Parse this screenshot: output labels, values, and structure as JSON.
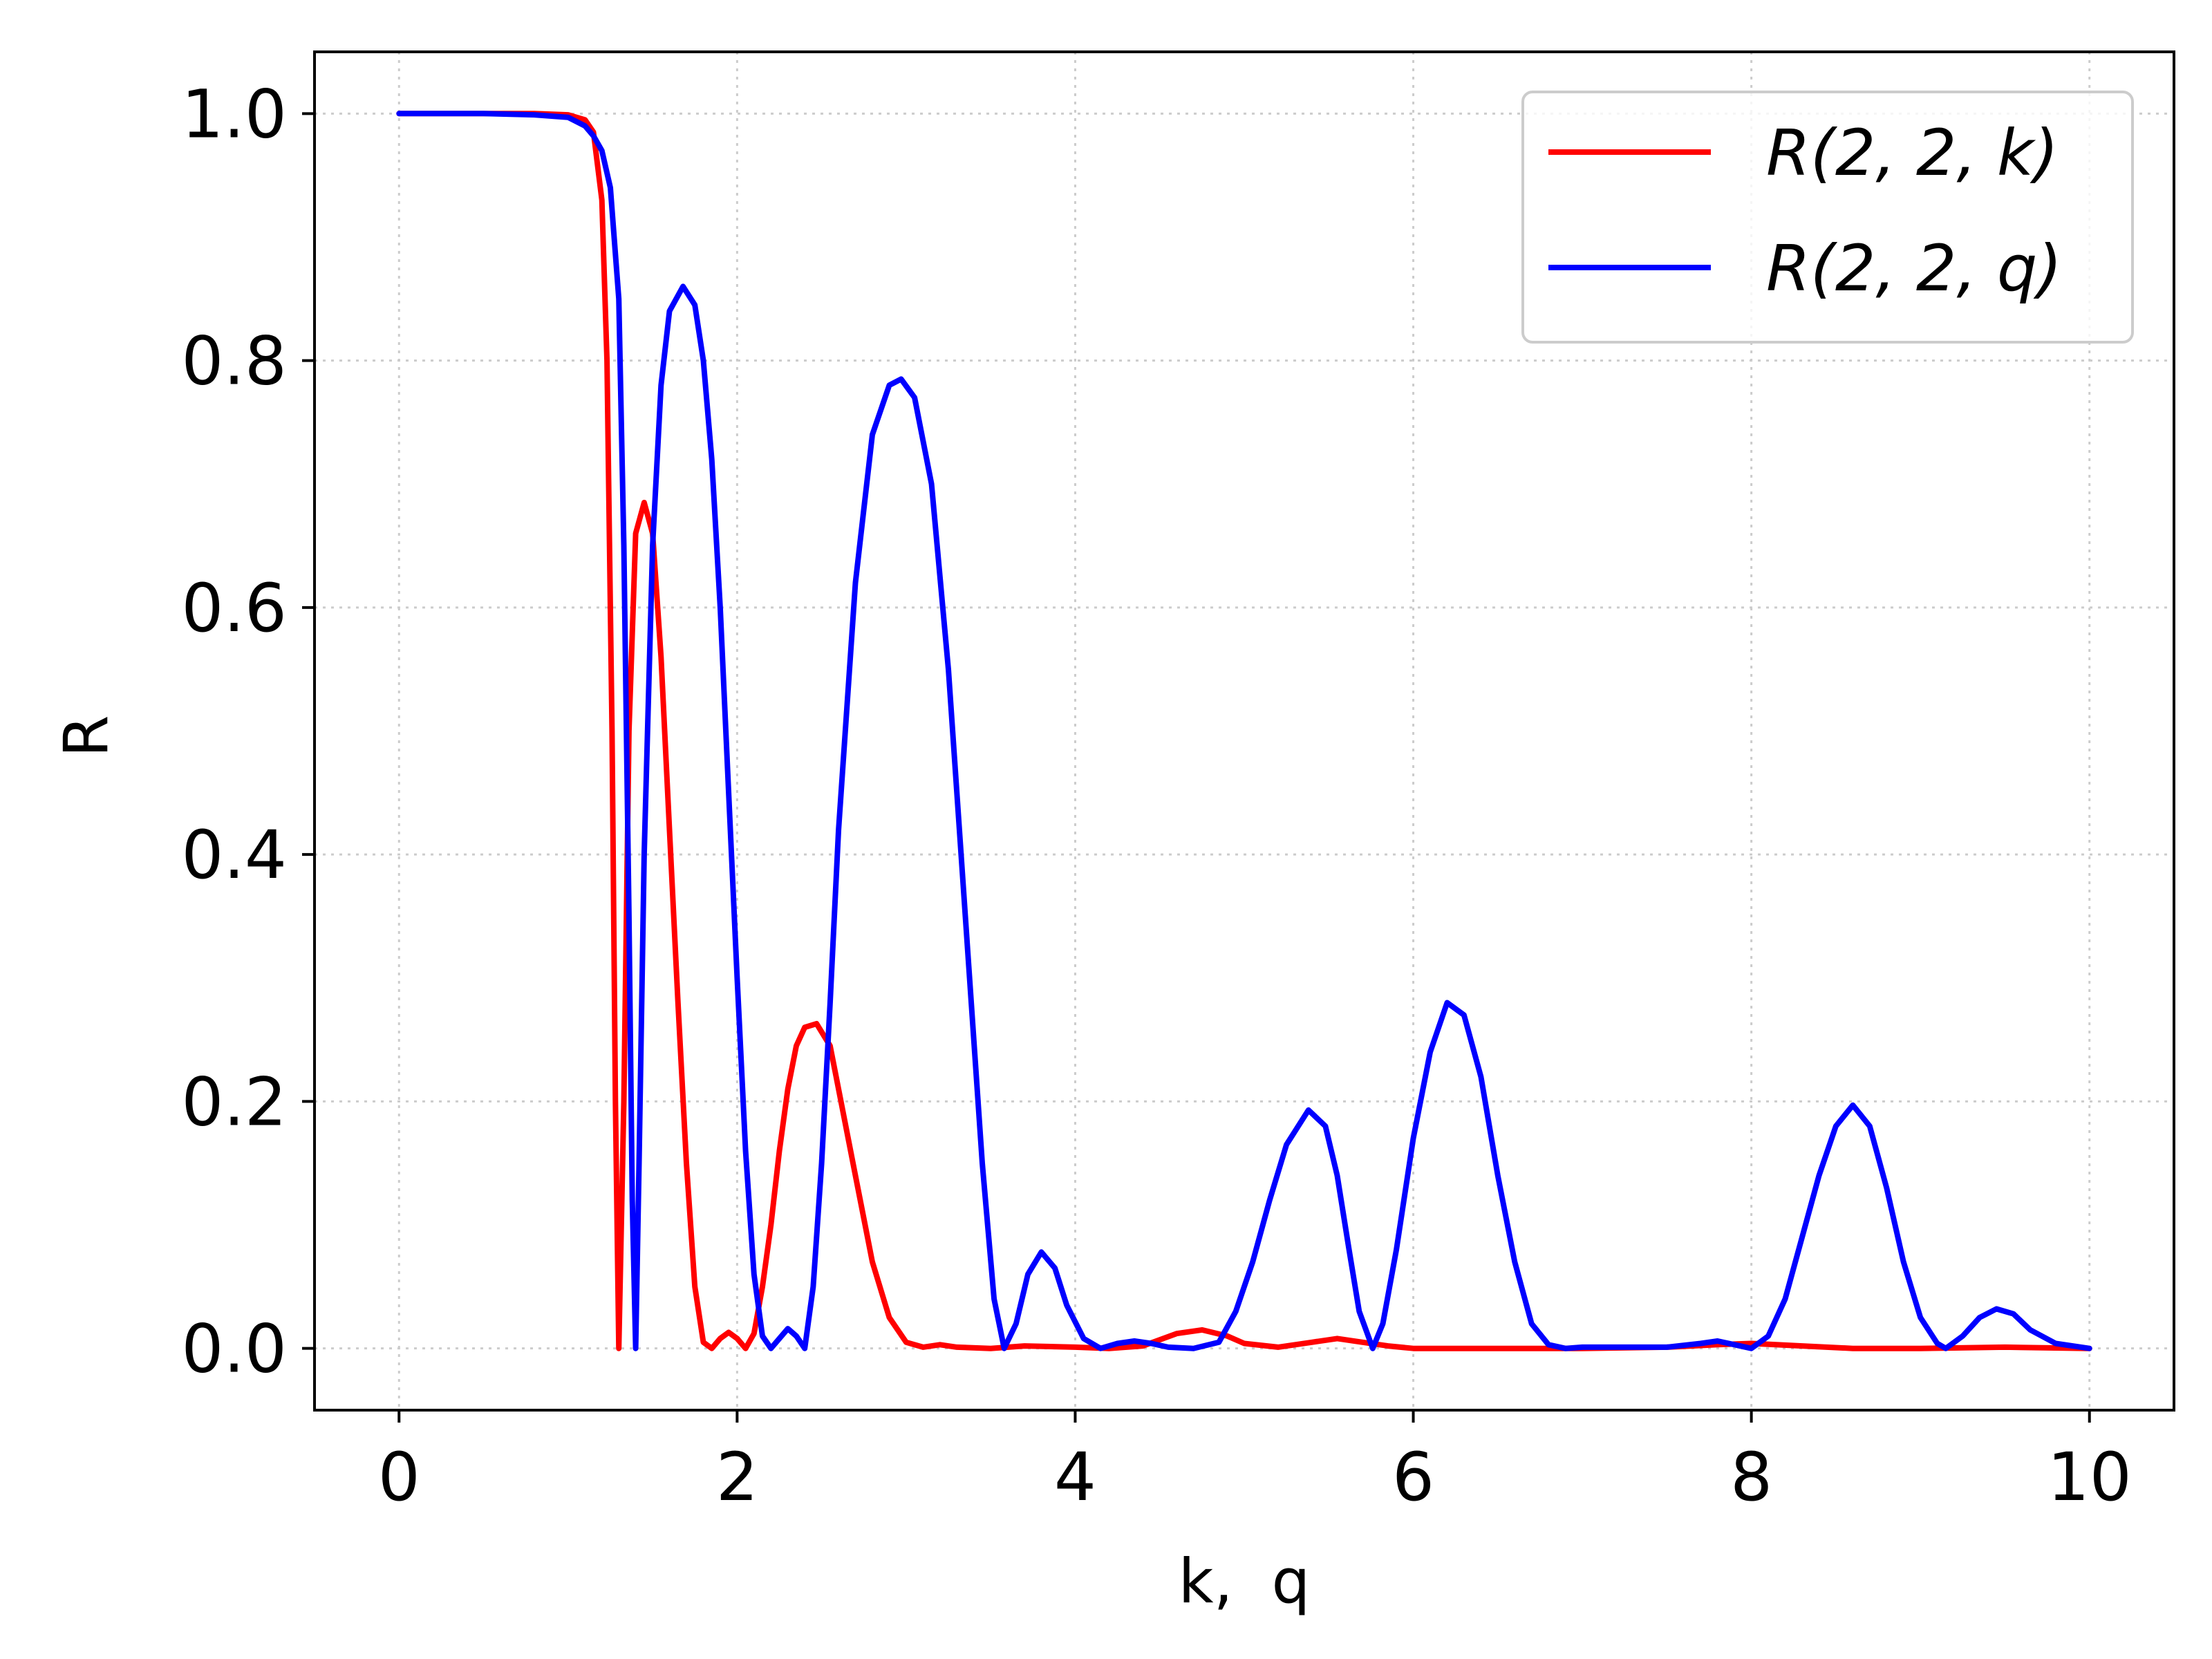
{
  "chart_data": {
    "type": "line",
    "xlabel": "k,  q",
    "ylabel": "R",
    "xlim": [
      -0.5,
      10.5
    ],
    "ylim": [
      -0.05,
      1.05
    ],
    "xticks": [
      "0",
      "2",
      "4",
      "6",
      "8",
      "10"
    ],
    "yticks": [
      "0.0",
      "0.2",
      "0.4",
      "0.6",
      "0.8",
      "1.0"
    ],
    "grid": true,
    "legend": {
      "position": "top-right"
    },
    "series": [
      {
        "name": "R(2, 2, k)",
        "color": "#ff0000",
        "points": [
          [
            0,
            1.0
          ],
          [
            0.5,
            1.0
          ],
          [
            0.8,
            1.0
          ],
          [
            1.0,
            0.999
          ],
          [
            1.1,
            0.995
          ],
          [
            1.15,
            0.985
          ],
          [
            1.2,
            0.93
          ],
          [
            1.23,
            0.8
          ],
          [
            1.26,
            0.5
          ],
          [
            1.28,
            0.2
          ],
          [
            1.3,
            0.0
          ],
          [
            1.33,
            0.2
          ],
          [
            1.36,
            0.5
          ],
          [
            1.4,
            0.66
          ],
          [
            1.45,
            0.685
          ],
          [
            1.5,
            0.66
          ],
          [
            1.55,
            0.56
          ],
          [
            1.6,
            0.42
          ],
          [
            1.65,
            0.28
          ],
          [
            1.7,
            0.15
          ],
          [
            1.75,
            0.05
          ],
          [
            1.8,
            0.005
          ],
          [
            1.85,
            0.0
          ],
          [
            1.9,
            0.008
          ],
          [
            1.95,
            0.013
          ],
          [
            2.0,
            0.008
          ],
          [
            2.05,
            0.0
          ],
          [
            2.1,
            0.012
          ],
          [
            2.15,
            0.05
          ],
          [
            2.2,
            0.1
          ],
          [
            2.25,
            0.16
          ],
          [
            2.3,
            0.21
          ],
          [
            2.35,
            0.245
          ],
          [
            2.4,
            0.26
          ],
          [
            2.47,
            0.263
          ],
          [
            2.55,
            0.245
          ],
          [
            2.6,
            0.21
          ],
          [
            2.7,
            0.14
          ],
          [
            2.8,
            0.07
          ],
          [
            2.9,
            0.025
          ],
          [
            3.0,
            0.005
          ],
          [
            3.1,
            0.001
          ],
          [
            3.2,
            0.003
          ],
          [
            3.3,
            0.001
          ],
          [
            3.5,
            0.0
          ],
          [
            3.7,
            0.002
          ],
          [
            4.0,
            0.001
          ],
          [
            4.2,
            0.0
          ],
          [
            4.4,
            0.002
          ],
          [
            4.6,
            0.012
          ],
          [
            4.75,
            0.015
          ],
          [
            4.9,
            0.01
          ],
          [
            5.0,
            0.004
          ],
          [
            5.2,
            0.001
          ],
          [
            5.4,
            0.005
          ],
          [
            5.55,
            0.008
          ],
          [
            5.7,
            0.005
          ],
          [
            5.85,
            0.002
          ],
          [
            6.0,
            0.0
          ],
          [
            7.0,
            0.0
          ],
          [
            7.5,
            0.001
          ],
          [
            7.8,
            0.003
          ],
          [
            8.0,
            0.004
          ],
          [
            8.3,
            0.002
          ],
          [
            8.6,
            0.0
          ],
          [
            9.0,
            0.0
          ],
          [
            9.5,
            0.001
          ],
          [
            10.0,
            0.0
          ]
        ]
      },
      {
        "name": "R(2, 2, q)",
        "color": "#0000ff",
        "points": [
          [
            0,
            1.0
          ],
          [
            0.5,
            1.0
          ],
          [
            0.8,
            0.999
          ],
          [
            1.0,
            0.997
          ],
          [
            1.1,
            0.99
          ],
          [
            1.15,
            0.982
          ],
          [
            1.2,
            0.97
          ],
          [
            1.25,
            0.94
          ],
          [
            1.3,
            0.85
          ],
          [
            1.33,
            0.65
          ],
          [
            1.36,
            0.35
          ],
          [
            1.38,
            0.12
          ],
          [
            1.4,
            0.0
          ],
          [
            1.42,
            0.15
          ],
          [
            1.45,
            0.4
          ],
          [
            1.5,
            0.65
          ],
          [
            1.55,
            0.78
          ],
          [
            1.6,
            0.84
          ],
          [
            1.68,
            0.86
          ],
          [
            1.75,
            0.845
          ],
          [
            1.8,
            0.8
          ],
          [
            1.85,
            0.72
          ],
          [
            1.9,
            0.6
          ],
          [
            1.95,
            0.45
          ],
          [
            2.0,
            0.3
          ],
          [
            2.05,
            0.16
          ],
          [
            2.1,
            0.06
          ],
          [
            2.15,
            0.01
          ],
          [
            2.2,
            0.0
          ],
          [
            2.25,
            0.008
          ],
          [
            2.3,
            0.016
          ],
          [
            2.35,
            0.01
          ],
          [
            2.4,
            0.0
          ],
          [
            2.45,
            0.05
          ],
          [
            2.5,
            0.15
          ],
          [
            2.55,
            0.28
          ],
          [
            2.6,
            0.42
          ],
          [
            2.7,
            0.62
          ],
          [
            2.8,
            0.74
          ],
          [
            2.9,
            0.78
          ],
          [
            2.97,
            0.785
          ],
          [
            3.05,
            0.77
          ],
          [
            3.15,
            0.7
          ],
          [
            3.25,
            0.55
          ],
          [
            3.35,
            0.35
          ],
          [
            3.45,
            0.15
          ],
          [
            3.52,
            0.04
          ],
          [
            3.58,
            0.0
          ],
          [
            3.65,
            0.02
          ],
          [
            3.72,
            0.06
          ],
          [
            3.8,
            0.078
          ],
          [
            3.88,
            0.065
          ],
          [
            3.95,
            0.035
          ],
          [
            4.05,
            0.008
          ],
          [
            4.15,
            0.0
          ],
          [
            4.25,
            0.004
          ],
          [
            4.35,
            0.006
          ],
          [
            4.45,
            0.004
          ],
          [
            4.55,
            0.001
          ],
          [
            4.7,
            0.0
          ],
          [
            4.85,
            0.005
          ],
          [
            4.95,
            0.03
          ],
          [
            5.05,
            0.07
          ],
          [
            5.15,
            0.12
          ],
          [
            5.25,
            0.165
          ],
          [
            5.38,
            0.193
          ],
          [
            5.48,
            0.18
          ],
          [
            5.55,
            0.14
          ],
          [
            5.62,
            0.08
          ],
          [
            5.68,
            0.03
          ],
          [
            5.76,
            0.0
          ],
          [
            5.82,
            0.02
          ],
          [
            5.9,
            0.08
          ],
          [
            6.0,
            0.17
          ],
          [
            6.1,
            0.24
          ],
          [
            6.2,
            0.28
          ],
          [
            6.3,
            0.27
          ],
          [
            6.4,
            0.22
          ],
          [
            6.5,
            0.14
          ],
          [
            6.6,
            0.07
          ],
          [
            6.7,
            0.02
          ],
          [
            6.8,
            0.003
          ],
          [
            6.9,
            0.0
          ],
          [
            7.0,
            0.001
          ],
          [
            7.5,
            0.001
          ],
          [
            7.7,
            0.004
          ],
          [
            7.8,
            0.006
          ],
          [
            7.9,
            0.003
          ],
          [
            8.0,
            0.0
          ],
          [
            8.1,
            0.01
          ],
          [
            8.2,
            0.04
          ],
          [
            8.3,
            0.09
          ],
          [
            8.4,
            0.14
          ],
          [
            8.5,
            0.18
          ],
          [
            8.6,
            0.197
          ],
          [
            8.7,
            0.18
          ],
          [
            8.8,
            0.13
          ],
          [
            8.9,
            0.07
          ],
          [
            9.0,
            0.025
          ],
          [
            9.1,
            0.004
          ],
          [
            9.15,
            0.0
          ],
          [
            9.25,
            0.01
          ],
          [
            9.35,
            0.025
          ],
          [
            9.45,
            0.032
          ],
          [
            9.55,
            0.028
          ],
          [
            9.65,
            0.015
          ],
          [
            9.8,
            0.004
          ],
          [
            10.0,
            0.0
          ]
        ]
      }
    ]
  }
}
